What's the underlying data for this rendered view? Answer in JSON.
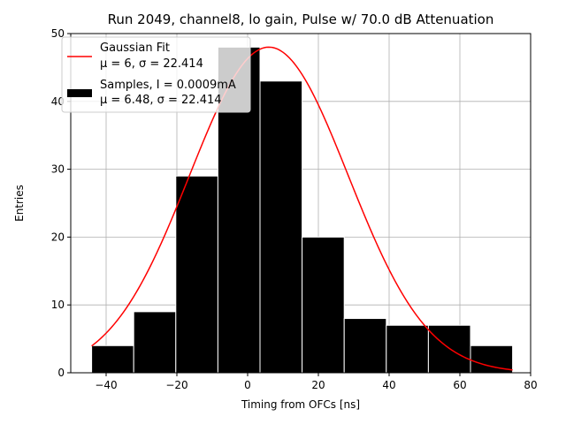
{
  "chart_data": {
    "type": "bar",
    "title": "Run 2049, channel8, lo gain, Pulse w/ 70.0 dB Attenuation",
    "xlabel": "Timing from OFCs [ns]",
    "ylabel": "Entries",
    "xlim": [
      -50,
      80
    ],
    "ylim": [
      0,
      50
    ],
    "xticks": [
      -40,
      -20,
      0,
      20,
      40,
      60,
      80
    ],
    "yticks": [
      0,
      10,
      20,
      30,
      40,
      50
    ],
    "grid": true,
    "legend_position": "top-left",
    "histogram": {
      "name": "Samples, I = 0.0009mA",
      "stats": "μ = 6.48, σ = 22.414",
      "color": "#000000",
      "bin_edges": [
        -44.1,
        -32.2,
        -20.3,
        -8.4,
        3.5,
        15.4,
        27.3,
        39.2,
        51.1,
        63.0,
        74.9
      ],
      "counts": [
        4,
        9,
        29,
        48,
        43,
        20,
        8,
        7,
        7,
        4
      ]
    },
    "fit": {
      "name": "Gaussian Fit",
      "stats": "μ = 6, σ = 22.414",
      "color": "#ff0000",
      "mu": 6,
      "sigma": 22.414,
      "amplitude": 48,
      "x_range": [
        -44.1,
        74.9
      ]
    }
  }
}
